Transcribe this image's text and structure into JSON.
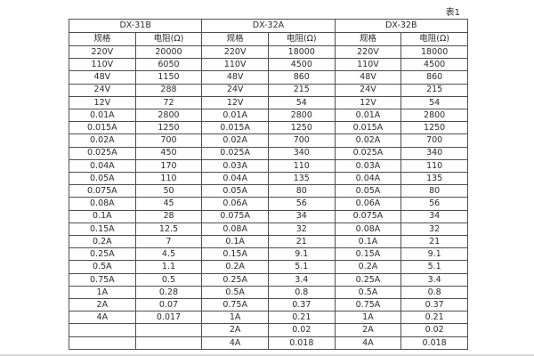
{
  "page": {
    "table_label": "表1"
  },
  "colors": {
    "background": "#ffffff",
    "border": "#4f4f4f",
    "text": "#2b2b2b",
    "bottom_strip": "#d9d9d9"
  },
  "table": {
    "groups": [
      {
        "name": "DX-31B"
      },
      {
        "name": "DX-32A"
      },
      {
        "name": "DX-32B"
      }
    ],
    "col_headers": {
      "spec": "规格",
      "resistance": "电阻(Ω)"
    },
    "rows": [
      [
        "220V",
        "20000",
        "220V",
        "18000",
        "220V",
        "18000"
      ],
      [
        "110V",
        "6050",
        "110V",
        "4500",
        "110V",
        "4500"
      ],
      [
        "48V",
        "1150",
        "48V",
        "860",
        "48V",
        "860"
      ],
      [
        "24V",
        "288",
        "24V",
        "215",
        "24V",
        "215"
      ],
      [
        "12V",
        "72",
        "12V",
        "54",
        "12V",
        "54"
      ],
      [
        "0.01A",
        "2800",
        "0.01A",
        "2800",
        "0.01A",
        "2800"
      ],
      [
        "0.015A",
        "1250",
        "0.015A",
        "1250",
        "0.015A",
        "1250"
      ],
      [
        "0.02A",
        "700",
        "0.02A",
        "700",
        "0.02A",
        "700"
      ],
      [
        "0.025A",
        "450",
        "0.025A",
        "340",
        "0.025A",
        "340"
      ],
      [
        "0.04A",
        "170",
        "0.03A",
        "110",
        "0.03A",
        "110"
      ],
      [
        "0.05A",
        "110",
        "0.04A",
        "135",
        "0.04A",
        "135"
      ],
      [
        "0.075A",
        "50",
        "0.05A",
        "80",
        "0.05A",
        "80"
      ],
      [
        "0.08A",
        "45",
        "0.06A",
        "56",
        "0.06A",
        "56"
      ],
      [
        "0.1A",
        "28",
        "0.075A",
        "34",
        "0.075A",
        "34"
      ],
      [
        "0.15A",
        "12.5",
        "0.08A",
        "32",
        "0.08A",
        "32"
      ],
      [
        "0.2A",
        "7",
        "0.1A",
        "21",
        "0.1A",
        "21"
      ],
      [
        "0.25A",
        "4.5",
        "0.15A",
        "9.1",
        "0.15A",
        "9.1"
      ],
      [
        "0.5A",
        "1.1",
        "0.2A",
        "5.1",
        "0.2A",
        "5.1"
      ],
      [
        "0.75A",
        "0.5",
        "0.25A",
        "3.4",
        "0.25A",
        "3.4"
      ],
      [
        "1A",
        "0.28",
        "0.5A",
        "0.8",
        "0.5A",
        "0.8"
      ],
      [
        "2A",
        "0.07",
        "0.75A",
        "0.37",
        "0.75A",
        "0.37"
      ],
      [
        "4A",
        "0.017",
        "1A",
        "0.21",
        "1A",
        "0.21"
      ],
      [
        "",
        "",
        "2A",
        "0.02",
        "2A",
        "0.02"
      ],
      [
        "",
        "",
        "4A",
        "0.018",
        "4A",
        "0.018"
      ]
    ]
  }
}
